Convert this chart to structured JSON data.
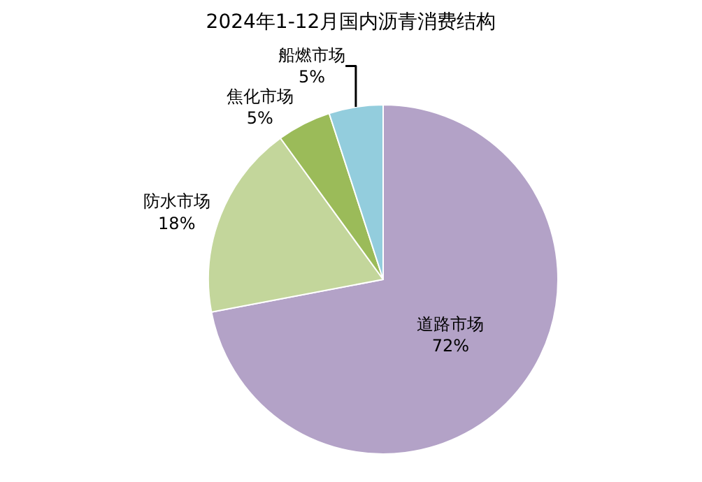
{
  "chart_data": {
    "type": "pie",
    "title": "2024年1-12月国内沥青消费结构",
    "categories": [
      "道路市场",
      "防水市场",
      "焦化市场",
      "船燃市场"
    ],
    "values": [
      72,
      18,
      5,
      5
    ],
    "value_labels": [
      "72%",
      "18%",
      "5%",
      "5%"
    ],
    "colors": [
      "#b3a2c7",
      "#c3d69b",
      "#9bbb59",
      "#93cddd"
    ],
    "legend": false
  }
}
